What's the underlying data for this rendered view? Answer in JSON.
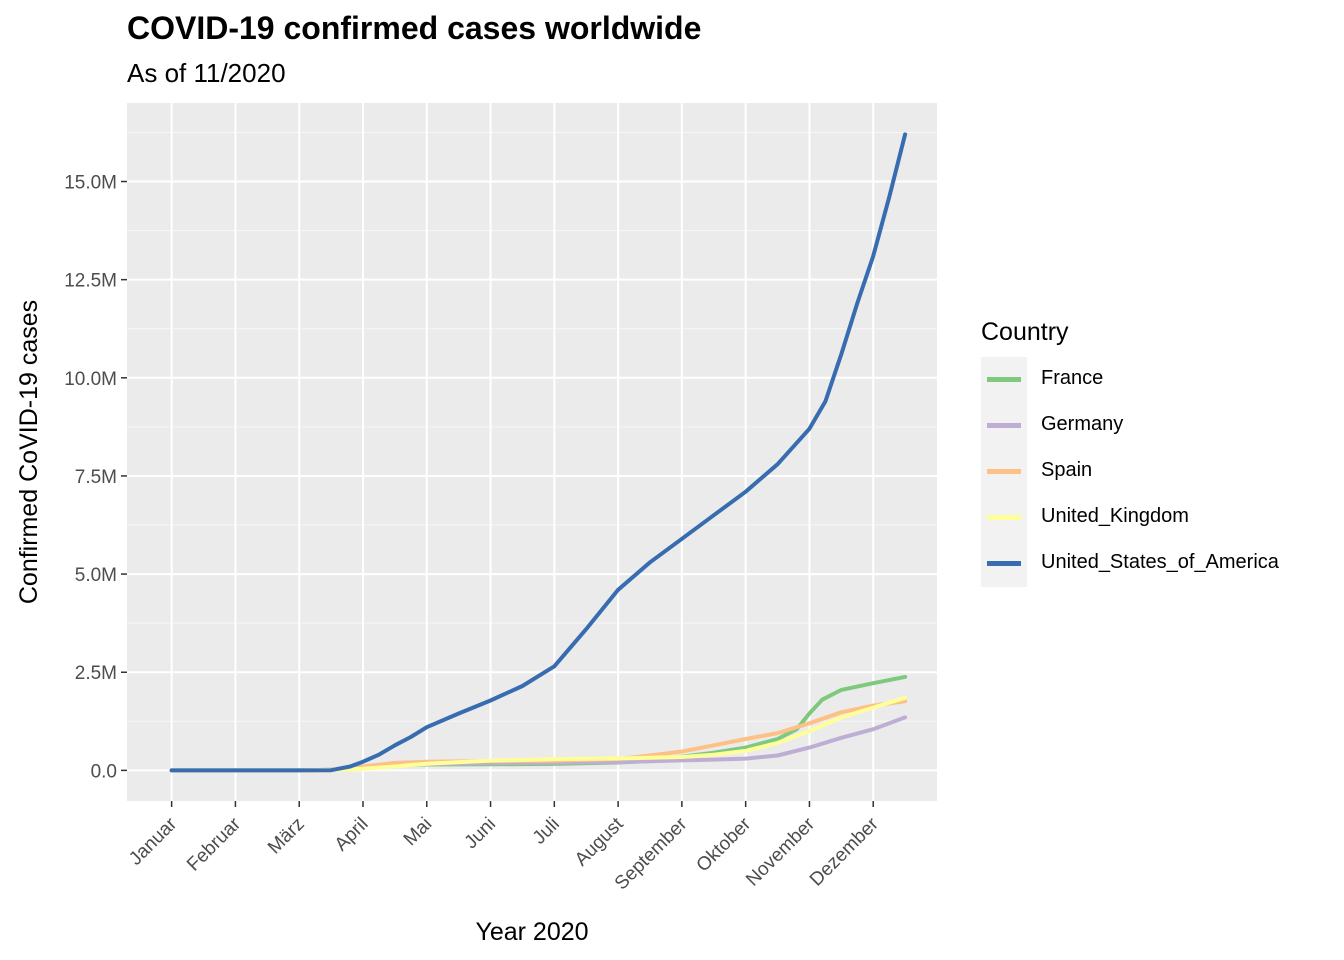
{
  "chart_data": {
    "type": "line",
    "title": "COVID-19 confirmed cases worldwide",
    "subtitle": "As of 11/2020",
    "xlabel": "Year 2020",
    "ylabel": "Confirmed CoVID-19 cases",
    "x_ticks": [
      "Januar",
      "Februar",
      "März",
      "April",
      "Mai",
      "Juni",
      "Juli",
      "August",
      "September",
      "Oktober",
      "November",
      "Dezember"
    ],
    "y_ticks": [
      "0.0",
      "2.5M",
      "5.0M",
      "7.5M",
      "10.0M",
      "12.5M",
      "15.0M"
    ],
    "x_unit": "months since Jan 1, 2020",
    "x_range": [
      -0.7,
      12.0
    ],
    "ylim": [
      -780000,
      17000000
    ],
    "grid": true,
    "legend": {
      "title": "Country",
      "position": "right"
    },
    "series": [
      {
        "name": "France",
        "color": "#7fc97f",
        "x": [
          0,
          1,
          2,
          2.6,
          3,
          3.5,
          4,
          5,
          6,
          7,
          7.5,
          8,
          8.5,
          9,
          9.5,
          9.8,
          10,
          10.2,
          10.5,
          11,
          11.5
        ],
        "y": [
          0,
          0,
          0,
          20000,
          80000,
          120000,
          150000,
          155000,
          165000,
          200000,
          240000,
          350000,
          450000,
          580000,
          800000,
          1050000,
          1450000,
          1800000,
          2050000,
          2220000,
          2380000
        ]
      },
      {
        "name": "Germany",
        "color": "#beaed4",
        "x": [
          0,
          1,
          2,
          2.6,
          3,
          3.5,
          4,
          5,
          6,
          7,
          7.5,
          8,
          8.5,
          9,
          9.5,
          10,
          10.5,
          11,
          11.5
        ],
        "y": [
          0,
          0,
          0,
          20000,
          70000,
          130000,
          160000,
          185000,
          195000,
          210000,
          230000,
          255000,
          275000,
          300000,
          380000,
          580000,
          830000,
          1050000,
          1350000
        ]
      },
      {
        "name": "Spain",
        "color": "#fdc086",
        "x": [
          0,
          1,
          2,
          2.6,
          3,
          3.5,
          4,
          5,
          6,
          7,
          7.5,
          8,
          8.5,
          9,
          9.5,
          10,
          10.5,
          11,
          11.5
        ],
        "y": [
          0,
          0,
          0,
          20000,
          100000,
          190000,
          220000,
          240000,
          250000,
          290000,
          380000,
          480000,
          640000,
          800000,
          950000,
          1200000,
          1480000,
          1650000,
          1760000
        ]
      },
      {
        "name": "United_Kingdom",
        "color": "#ffff99",
        "x": [
          0,
          1,
          2,
          2.6,
          3,
          3.5,
          4,
          5,
          6,
          7,
          7.5,
          8,
          8.5,
          9,
          9.5,
          10,
          10.5,
          11,
          11.5
        ],
        "y": [
          0,
          0,
          0,
          10000,
          40000,
          100000,
          170000,
          250000,
          285000,
          305000,
          320000,
          340000,
          400000,
          500000,
          700000,
          1000000,
          1350000,
          1600000,
          1850000
        ]
      },
      {
        "name": "United_States_of_America",
        "color": "#386cb0",
        "x": [
          0,
          1,
          2,
          2.5,
          2.8,
          3,
          3.25,
          3.5,
          3.75,
          4,
          4.5,
          5,
          5.5,
          6,
          6.5,
          7,
          7.5,
          8,
          8.5,
          9,
          9.5,
          10,
          10.25,
          10.5,
          10.75,
          11,
          11.25,
          11.5
        ],
        "y": [
          0,
          0,
          0,
          5000,
          100000,
          220000,
          400000,
          640000,
          850000,
          1100000,
          1450000,
          1780000,
          2150000,
          2650000,
          3600000,
          4600000,
          5300000,
          5900000,
          6500000,
          7100000,
          7800000,
          8700000,
          9400000,
          10600000,
          11900000,
          13100000,
          14600000,
          16200000
        ]
      }
    ]
  }
}
